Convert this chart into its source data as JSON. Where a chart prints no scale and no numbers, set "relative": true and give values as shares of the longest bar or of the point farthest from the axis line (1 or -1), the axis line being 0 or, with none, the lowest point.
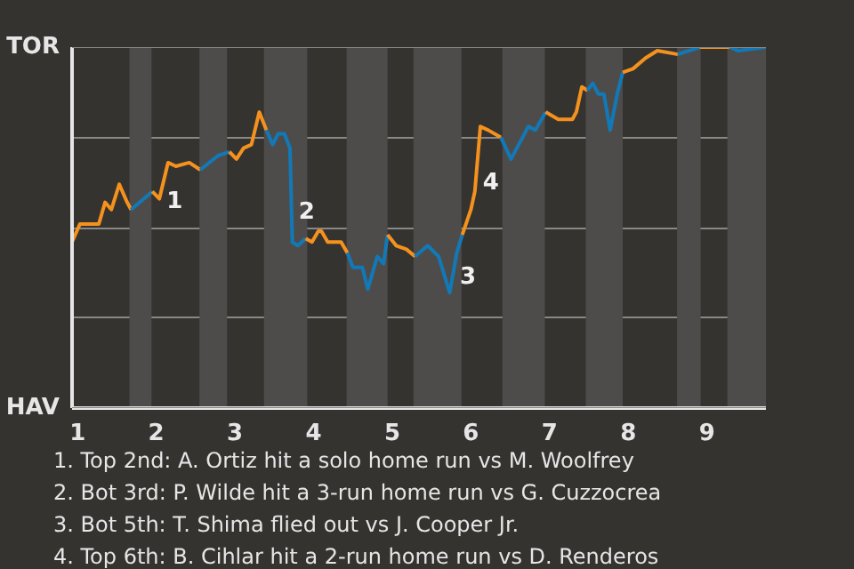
{
  "chart_data": {
    "type": "line",
    "series": [
      {
        "color": "#f5921e",
        "x": [
          0.93,
          1.03,
          1.27,
          1.35,
          1.43,
          1.53,
          1.63,
          1.68
        ],
        "values": [
          0.46,
          0.51,
          0.51,
          0.57,
          0.55,
          0.62,
          0.57,
          0.55
        ]
      },
      {
        "color": "#1279b8",
        "x": [
          1.68,
          1.95
        ],
        "values": [
          0.55,
          0.6
        ]
      },
      {
        "color": "#f5921e",
        "x": [
          1.95,
          2.04,
          2.15,
          2.25,
          2.42,
          2.56
        ],
        "values": [
          0.6,
          0.58,
          0.68,
          0.67,
          0.68,
          0.66
        ]
      },
      {
        "color": "#1279b8",
        "x": [
          2.56,
          2.79,
          2.93
        ],
        "values": [
          0.66,
          0.7,
          0.71
        ]
      },
      {
        "color": "#f5921e",
        "x": [
          2.93,
          3.02,
          3.11,
          3.21,
          3.31,
          3.4
        ],
        "values": [
          0.71,
          0.69,
          0.72,
          0.73,
          0.82,
          0.77
        ]
      },
      {
        "color": "#1279b8",
        "x": [
          3.4,
          3.48,
          3.55,
          3.63,
          3.7,
          3.73,
          3.8,
          3.9
        ],
        "values": [
          0.77,
          0.73,
          0.76,
          0.76,
          0.72,
          0.46,
          0.45,
          0.47
        ]
      },
      {
        "color": "#f5921e",
        "x": [
          3.9,
          3.98,
          4.06,
          4.1,
          4.18,
          4.35,
          4.43
        ],
        "values": [
          0.47,
          0.46,
          0.49,
          0.49,
          0.46,
          0.46,
          0.43
        ]
      },
      {
        "color": "#1279b8",
        "x": [
          4.43,
          4.5,
          4.62,
          4.69,
          4.81,
          4.89,
          4.94
        ],
        "values": [
          0.43,
          0.39,
          0.39,
          0.33,
          0.42,
          0.4,
          0.48
        ]
      },
      {
        "color": "#f5921e",
        "x": [
          4.94,
          5.05,
          5.18,
          5.29
        ],
        "values": [
          0.48,
          0.45,
          0.44,
          0.42
        ]
      },
      {
        "color": "#1279b8",
        "x": [
          5.29,
          5.45,
          5.59,
          5.73,
          5.82,
          5.89
        ],
        "values": [
          0.42,
          0.45,
          0.42,
          0.32,
          0.43,
          0.48
        ]
      },
      {
        "color": "#f5921e",
        "x": [
          5.89,
          6.0,
          6.05,
          6.12,
          6.22,
          6.38
        ],
        "values": [
          0.48,
          0.55,
          0.6,
          0.78,
          0.77,
          0.75
        ]
      },
      {
        "color": "#1279b8",
        "x": [
          6.38,
          6.51,
          6.73,
          6.82,
          6.95
        ],
        "values": [
          0.75,
          0.69,
          0.78,
          0.77,
          0.82
        ]
      },
      {
        "color": "#f5921e",
        "x": [
          6.95,
          7.11,
          7.29,
          7.34,
          7.41,
          7.48
        ],
        "values": [
          0.82,
          0.8,
          0.8,
          0.82,
          0.89,
          0.88
        ]
      },
      {
        "color": "#1279b8",
        "x": [
          7.48,
          7.55,
          7.62,
          7.69,
          7.77,
          7.86,
          7.93
        ],
        "values": [
          0.88,
          0.9,
          0.87,
          0.87,
          0.77,
          0.87,
          0.93
        ]
      },
      {
        "color": "#f5921e",
        "x": [
          7.93,
          8.06,
          8.22,
          8.37,
          8.63
        ],
        "values": [
          0.93,
          0.94,
          0.97,
          0.99,
          0.98
        ]
      },
      {
        "color": "#1279b8",
        "x": [
          8.63,
          8.91
        ],
        "values": [
          0.98,
          1.0
        ]
      },
      {
        "color": "#f5921e",
        "x": [
          8.91,
          9.29
        ],
        "values": [
          1.0,
          1.0
        ]
      },
      {
        "color": "#1279b8",
        "x": [
          9.29,
          9.4,
          9.75
        ],
        "values": [
          1.0,
          0.99,
          1.0
        ]
      }
    ],
    "xlim": [
      0.93,
      9.75
    ],
    "relative": true,
    "xticks": [
      1,
      2,
      3,
      4,
      5,
      6,
      7,
      8,
      9
    ],
    "ref_lines": [
      {
        "axis": "y",
        "value": 1,
        "label": "TOR"
      },
      {
        "axis": "y",
        "value": 0,
        "label": "HAV"
      }
    ],
    "grid": "y",
    "bands": [
      {
        "axis": "x",
        "from": 1.66,
        "to": 1.94,
        "color": "#4e4c4a"
      },
      {
        "axis": "x",
        "from": 2.55,
        "to": 2.9,
        "color": "#4e4c4a"
      },
      {
        "axis": "x",
        "from": 3.37,
        "to": 3.92,
        "color": "#4e4c4a"
      },
      {
        "axis": "x",
        "from": 4.42,
        "to": 4.94,
        "color": "#4e4c4a"
      },
      {
        "axis": "x",
        "from": 5.27,
        "to": 5.88,
        "color": "#4e4c4a"
      },
      {
        "axis": "x",
        "from": 6.4,
        "to": 6.94,
        "color": "#4e4c4a"
      },
      {
        "axis": "x",
        "from": 7.46,
        "to": 7.93,
        "color": "#4e4c4a"
      },
      {
        "axis": "x",
        "from": 8.62,
        "to": 8.92,
        "color": "#4e4c4a"
      },
      {
        "axis": "x",
        "from": 9.26,
        "to": 9.75,
        "color": "#4e4c4a"
      }
    ],
    "annotations": [
      {
        "text": "1",
        "x": 2.04,
        "y": 0.58
      },
      {
        "text": "2",
        "x": 3.72,
        "y": 0.55
      },
      {
        "text": "3",
        "x": 5.77,
        "y": 0.37
      },
      {
        "text": "4",
        "x": 6.06,
        "y": 0.63
      },
      "1. Top 2nd: A. Ortiz hit a solo home run vs M. Woolfrey",
      "2. Bot 3rd: P. Wilde hit a 3-run home run vs G. Cuzzocrea",
      "3. Bot 5th: T. Shima flied out vs J. Cooper Jr.",
      "4. Top 6th: B. Cihlar hit a 2-run home run vs D. Renderos"
    ]
  }
}
